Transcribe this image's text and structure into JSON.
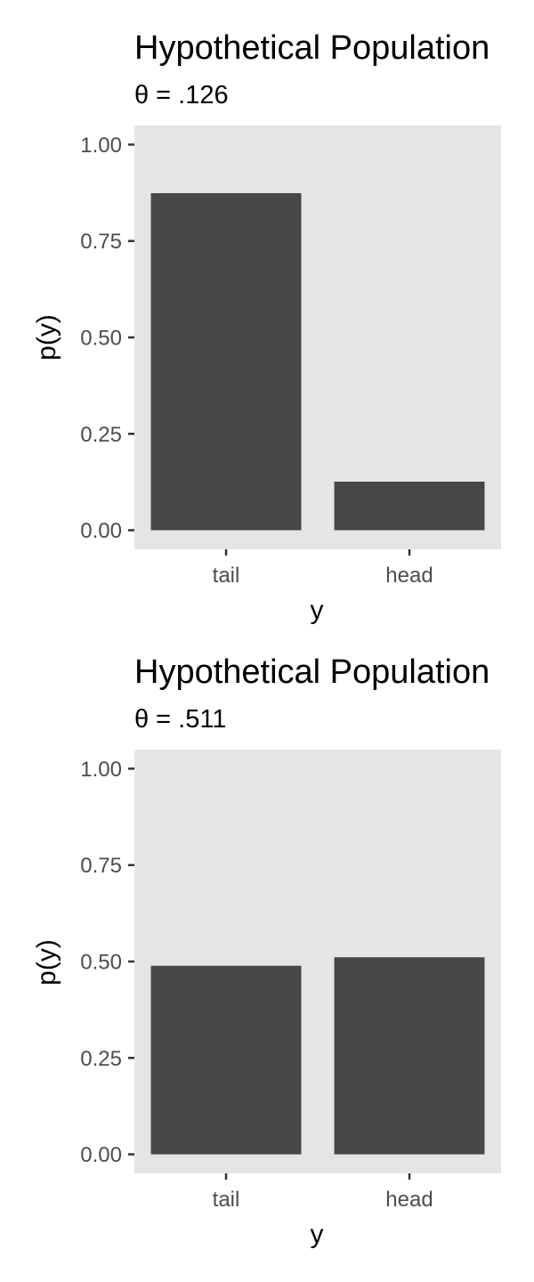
{
  "chart_data": [
    {
      "type": "bar",
      "title": "Hypothetical Population",
      "subtitle": "θ = .126",
      "xlabel": "y",
      "ylabel": "p(y)",
      "categories": [
        "tail",
        "head"
      ],
      "values": [
        0.874,
        0.126
      ],
      "ylim": [
        0,
        1
      ],
      "yticks": [
        0,
        0.25,
        0.5,
        0.75,
        1
      ],
      "ytick_labels": [
        "0.00",
        "0.25",
        "0.50",
        "0.75",
        "1.00"
      ],
      "grid": false,
      "colors": {
        "panel": "#e5e5e5",
        "bar": "#474747",
        "tick": "#333333"
      }
    },
    {
      "type": "bar",
      "title": "Hypothetical Population",
      "subtitle": "θ = .511",
      "xlabel": "y",
      "ylabel": "p(y)",
      "categories": [
        "tail",
        "head"
      ],
      "values": [
        0.489,
        0.511
      ],
      "ylim": [
        0,
        1
      ],
      "yticks": [
        0,
        0.25,
        0.5,
        0.75,
        1
      ],
      "ytick_labels": [
        "0.00",
        "0.25",
        "0.50",
        "0.75",
        "1.00"
      ],
      "grid": false,
      "colors": {
        "panel": "#e5e5e5",
        "bar": "#474747",
        "tick": "#333333"
      }
    }
  ]
}
